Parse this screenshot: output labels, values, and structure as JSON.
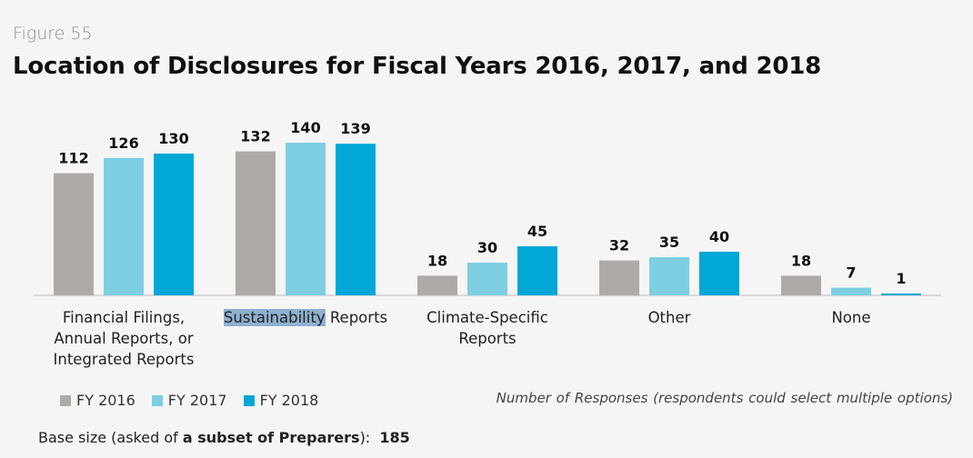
{
  "figure_label": "Figure 55",
  "title": "Location of Disclosures for Fiscal Years 2016, 2017, and 2018",
  "note": "Number of Responses (respondents could select multiple options)",
  "base": {
    "prefix": "Base size (asked of ",
    "emphasis": "a subset of Preparers",
    "suffix": "):",
    "value": "185"
  },
  "category_labels": [
    [
      "Financial Filings,",
      "Annual Reports, or",
      "Integrated Reports"
    ],
    [
      "Sustainability Reports"
    ],
    [
      "Climate-Specific",
      "Reports"
    ],
    [
      "Other"
    ],
    [
      "None"
    ]
  ],
  "highlighted_word": "Sustainability",
  "colors": {
    "FY 2016": "#aeaaa8",
    "FY 2017": "#7ecfe2",
    "FY 2018": "#00a7d7"
  },
  "chart_data": {
    "type": "bar",
    "title": "Location of Disclosures for Fiscal Years 2016, 2017, and 2018",
    "xlabel": "",
    "ylabel": "",
    "categories": [
      "Financial Filings, Annual Reports, or Integrated Reports",
      "Sustainability Reports",
      "Climate-Specific Reports",
      "Other",
      "None"
    ],
    "series": [
      {
        "name": "FY 2016",
        "values": [
          112,
          132,
          18,
          32,
          18
        ]
      },
      {
        "name": "FY 2017",
        "values": [
          126,
          140,
          30,
          35,
          7
        ]
      },
      {
        "name": "FY 2018",
        "values": [
          130,
          139,
          45,
          40,
          1
        ]
      }
    ],
    "ylim": [
      0,
      140
    ],
    "grid": false,
    "legend": "bottom-left"
  }
}
